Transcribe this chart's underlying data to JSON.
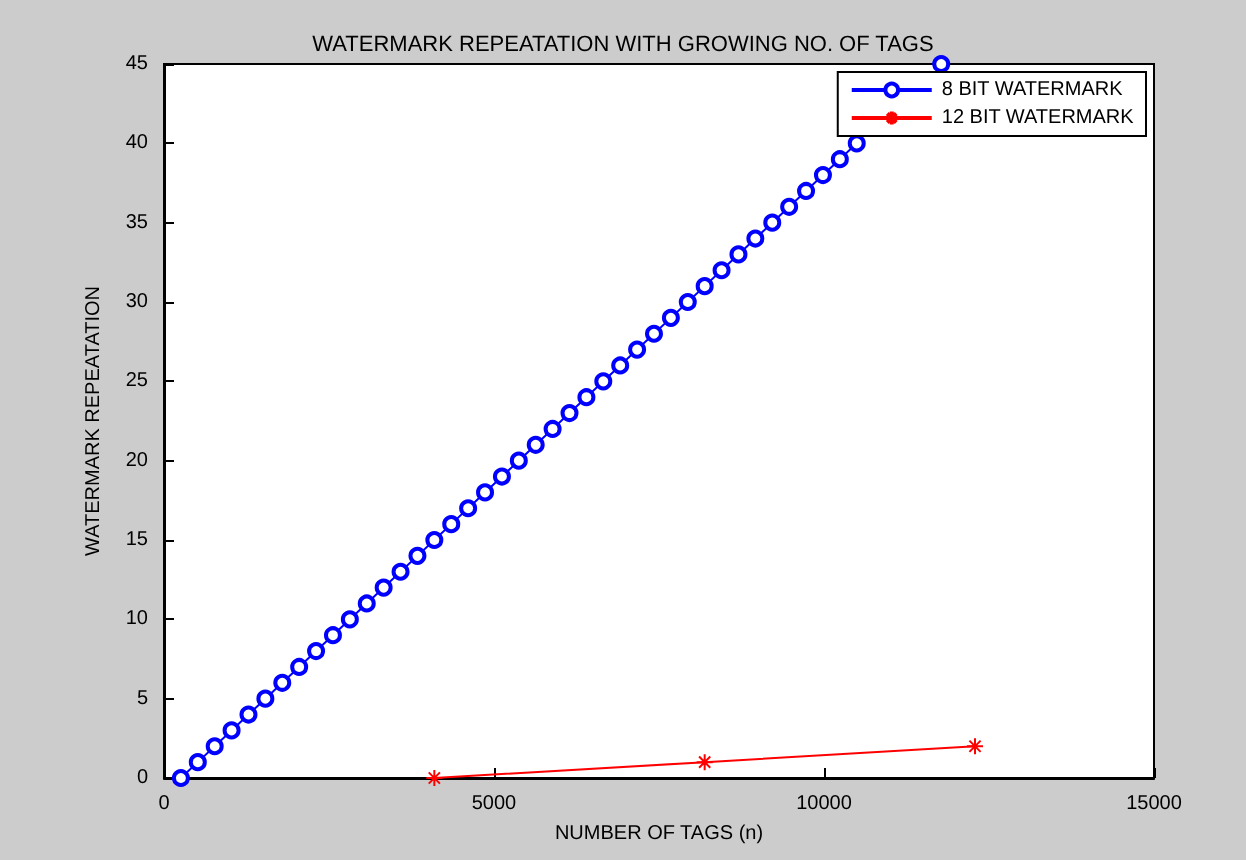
{
  "chart_data": {
    "type": "line",
    "title": "WATERMARK REPEATATION WITH GROWING NO. OF TAGS",
    "xlabel": "NUMBER OF TAGS (n)",
    "ylabel": "WATERMARK REPEATATION",
    "xlim": [
      0,
      15000
    ],
    "xticks": [
      0,
      5000,
      10000,
      15000
    ],
    "ylim": [
      0,
      45
    ],
    "yticks": [
      0,
      5,
      10,
      15,
      20,
      25,
      30,
      35,
      40,
      45
    ],
    "grid": false,
    "legend": "top right",
    "series": [
      {
        "name": "8 BIT WATERMARK",
        "color": "#0000ff",
        "marker": "circle",
        "x": [
          256,
          512,
          768,
          1024,
          1280,
          1536,
          1792,
          2048,
          2304,
          2560,
          2816,
          3072,
          3328,
          3584,
          3840,
          4096,
          4352,
          4608,
          4864,
          5120,
          5376,
          5632,
          5888,
          6144,
          6400,
          6656,
          6912,
          7168,
          7424,
          7680,
          7936,
          8192,
          8448,
          8704,
          8960,
          9216,
          9472,
          9728,
          9984,
          10240,
          10496,
          10752,
          11008,
          11264,
          11520,
          11776
        ],
        "values": [
          0,
          1,
          2,
          3,
          4,
          5,
          6,
          7,
          8,
          9,
          10,
          11,
          12,
          13,
          14,
          15,
          16,
          17,
          18,
          19,
          20,
          21,
          22,
          23,
          24,
          25,
          26,
          27,
          28,
          29,
          30,
          31,
          32,
          33,
          34,
          35,
          36,
          37,
          38,
          39,
          40,
          null,
          null,
          null,
          null,
          45
        ]
      },
      {
        "name": "12 BIT WATERMARK",
        "color": "#ff0000",
        "marker": "cross",
        "x": [
          4096,
          8192,
          12288
        ],
        "values": [
          0,
          1,
          2
        ]
      }
    ]
  }
}
